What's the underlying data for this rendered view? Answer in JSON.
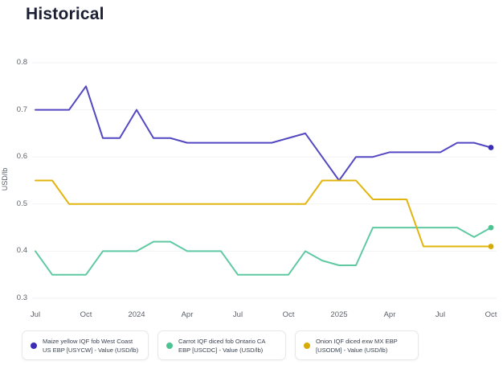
{
  "page": {
    "title": "Historical"
  },
  "chart_data": {
    "type": "line",
    "title": "Historical",
    "xlabel": "",
    "ylabel": "USD/lb",
    "ylim": [
      0.3,
      0.8
    ],
    "y_ticks": [
      0.8,
      0.7,
      0.6,
      0.5,
      0.4,
      0.3
    ],
    "x_ticks": [
      {
        "label": "Jul",
        "index": 0
      },
      {
        "label": "Oct",
        "index": 3
      },
      {
        "label": "2024",
        "index": 6
      },
      {
        "label": "Apr",
        "index": 9
      },
      {
        "label": "Jul",
        "index": 12
      },
      {
        "label": "Oct",
        "index": 15
      },
      {
        "label": "2025",
        "index": 18
      },
      {
        "label": "Apr",
        "index": 21
      },
      {
        "label": "Jul",
        "index": 24
      },
      {
        "label": "Oct",
        "index": 27
      }
    ],
    "x_unit": "month (Jul 2023 - Oct 2025)",
    "grid": true,
    "legend_position": "bottom",
    "series": [
      {
        "name": "Maize yellow IQF fob West Coast US EBP [USYCW] - Value (USD/lb)",
        "color": "#5348c2",
        "dot_color": "#3c2db6",
        "values": [
          0.7,
          0.7,
          0.7,
          0.75,
          0.64,
          0.64,
          0.7,
          0.64,
          0.64,
          0.63,
          0.63,
          0.63,
          0.63,
          0.63,
          0.63,
          0.64,
          0.65,
          0.6,
          0.55,
          0.6,
          0.6,
          0.61,
          0.61,
          0.61,
          0.61,
          0.63,
          0.63,
          0.62
        ]
      },
      {
        "name": "Carrot IQF diced fob Ontario CA EBP [USCDC] - Value (USD/lb)",
        "color": "#5fc9a2",
        "dot_color": "#4cc393",
        "values": [
          0.4,
          0.35,
          0.35,
          0.35,
          0.4,
          0.4,
          0.4,
          0.42,
          0.42,
          0.4,
          0.4,
          0.4,
          0.35,
          0.35,
          0.35,
          0.35,
          0.4,
          0.38,
          0.37,
          0.37,
          0.45,
          0.45,
          0.45,
          0.45,
          0.45,
          0.45,
          0.43,
          0.45
        ]
      },
      {
        "name": "Onion IQF diced exw MX EBP [USODM] - Value (USD/lb)",
        "color": "#e1b50e",
        "dot_color": "#d7ab06",
        "values": [
          0.55,
          0.55,
          0.5,
          0.5,
          0.5,
          0.5,
          0.5,
          0.5,
          0.5,
          0.5,
          0.5,
          0.5,
          0.5,
          0.5,
          0.5,
          0.5,
          0.5,
          0.55,
          0.55,
          0.55,
          0.51,
          0.51,
          0.51,
          0.41,
          0.41,
          0.41,
          0.41,
          0.41
        ]
      }
    ]
  },
  "style": {
    "gridline_color": "#f1f2f4",
    "axis_text_color": "#5b6069",
    "title_color": "#1a1f33"
  }
}
